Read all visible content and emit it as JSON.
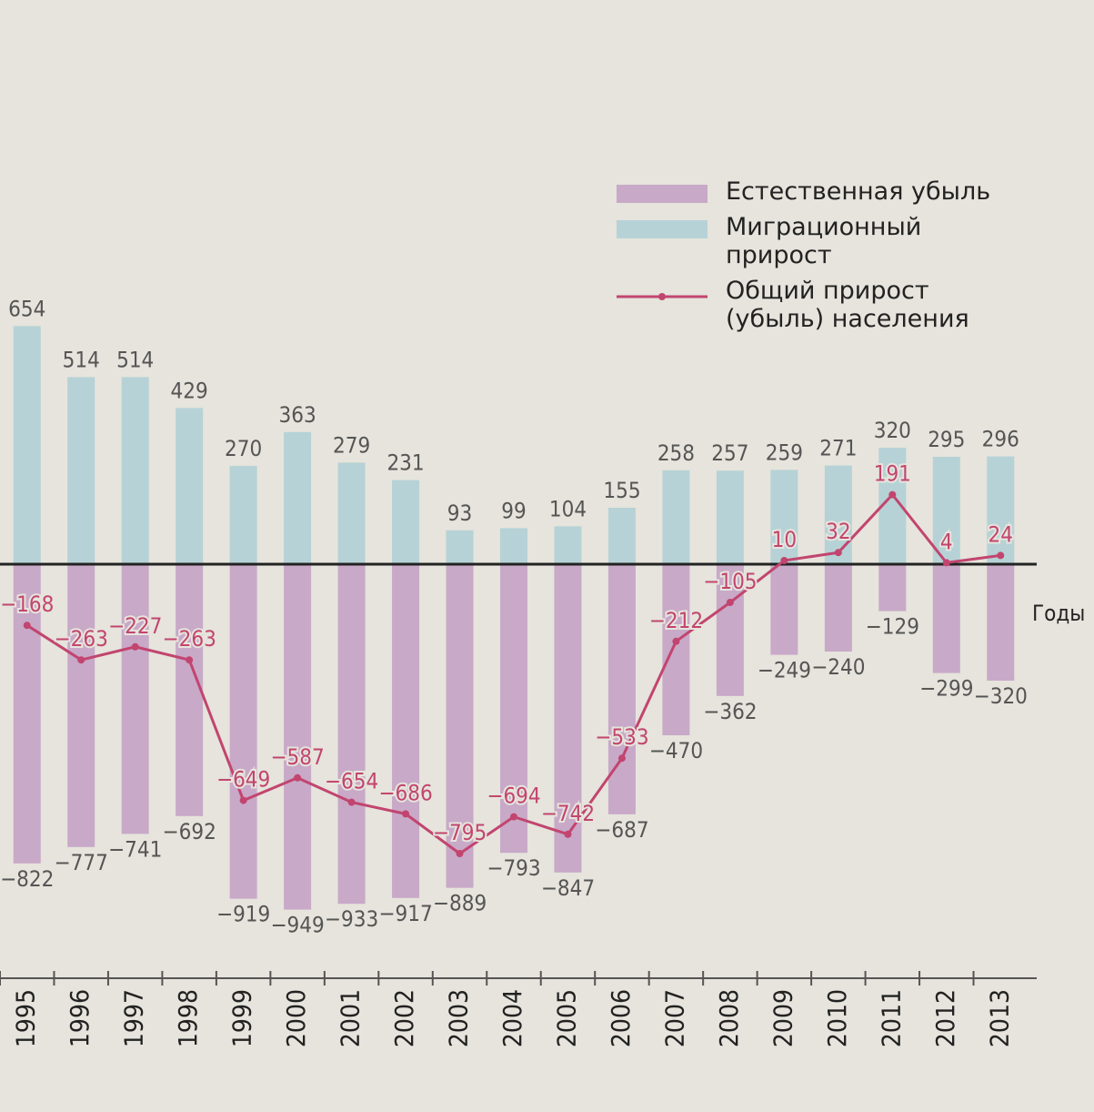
{
  "chart_data": {
    "type": "bar-line",
    "categories": [
      "1995",
      "1996",
      "1997",
      "1998",
      "1999",
      "2000",
      "2001",
      "2002",
      "2003",
      "2004",
      "2005",
      "2006",
      "2007",
      "2008",
      "2009",
      "2010",
      "2011",
      "2012",
      "2013"
    ],
    "x_label": "Годы",
    "series": [
      {
        "name": "Естественная убыль",
        "type": "bar",
        "color": "#c8a9c8",
        "values": [
          -822,
          -777,
          -741,
          -692,
          -919,
          -949,
          -933,
          -917,
          -889,
          -793,
          -847,
          -687,
          -470,
          -362,
          -249,
          -240,
          -129,
          -299,
          -320
        ],
        "value_labels": [
          "−822",
          "−777",
          "−741",
          "−692",
          "−919",
          "−949",
          "−933",
          "−917",
          "−889",
          "−793",
          "−847",
          "−687",
          "−470",
          "−362",
          "−249",
          "−240",
          "−129",
          "−299",
          "−320"
        ]
      },
      {
        "name": "Миграционный прирост",
        "type": "bar",
        "color": "#b6d2d6",
        "values": [
          654,
          514,
          514,
          429,
          270,
          363,
          279,
          231,
          93,
          99,
          104,
          155,
          258,
          257,
          259,
          271,
          320,
          295,
          296
        ]
      },
      {
        "name": "Общий прирост (убыль) населения",
        "type": "line",
        "color": "#c2456f",
        "values": [
          -168,
          -263,
          -227,
          -263,
          -649,
          -587,
          -654,
          -686,
          -795,
          -694,
          -742,
          -533,
          -212,
          -105,
          10,
          32,
          191,
          4,
          24
        ],
        "value_labels": [
          "−168",
          "−263",
          "−227",
          "−263",
          "−649",
          "−587",
          "−654",
          "−686",
          "−795",
          "−694",
          "−742",
          "−533",
          "−212",
          "−105",
          "10",
          "32",
          "191",
          "4",
          "24"
        ]
      }
    ],
    "ylim": [
      -1050,
      900
    ],
    "legend": "upper right"
  }
}
